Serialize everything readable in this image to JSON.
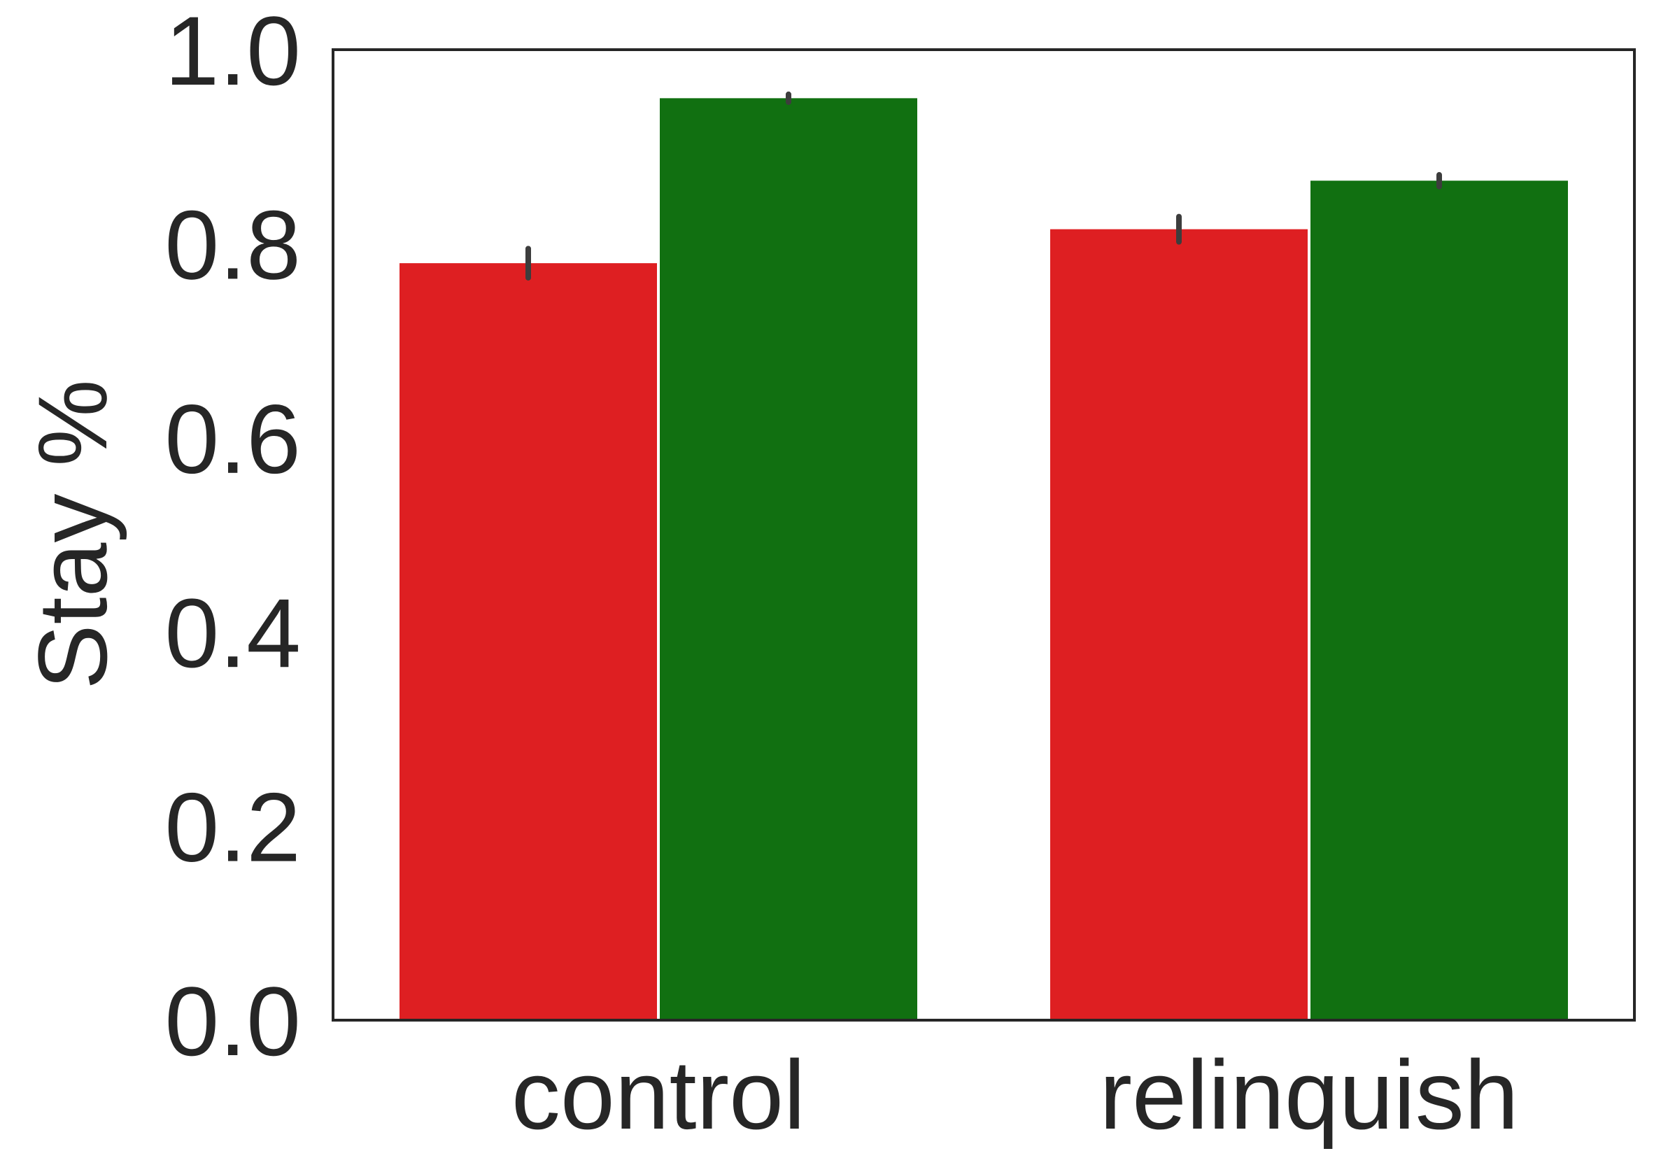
{
  "chart_data": {
    "type": "bar",
    "title": "",
    "xlabel": "",
    "ylabel": "Stay %",
    "categories": [
      "control",
      "relinquish"
    ],
    "ylim": [
      0,
      1.0
    ],
    "yticks": [
      "0.0",
      "0.2",
      "0.4",
      "0.6",
      "0.8",
      "1.0"
    ],
    "grid": false,
    "legend": "none",
    "series": [
      {
        "color": "#de1f22",
        "values": [
          0.78,
          0.815
        ],
        "errors": [
          0.015,
          0.013
        ]
      },
      {
        "color": "#117011",
        "values": [
          0.95,
          0.865
        ],
        "errors": [
          0.004,
          0.006
        ]
      }
    ],
    "colors": {
      "axis": "#262626",
      "errorbar": "#3d3d3d",
      "background": "#ffffff"
    }
  }
}
